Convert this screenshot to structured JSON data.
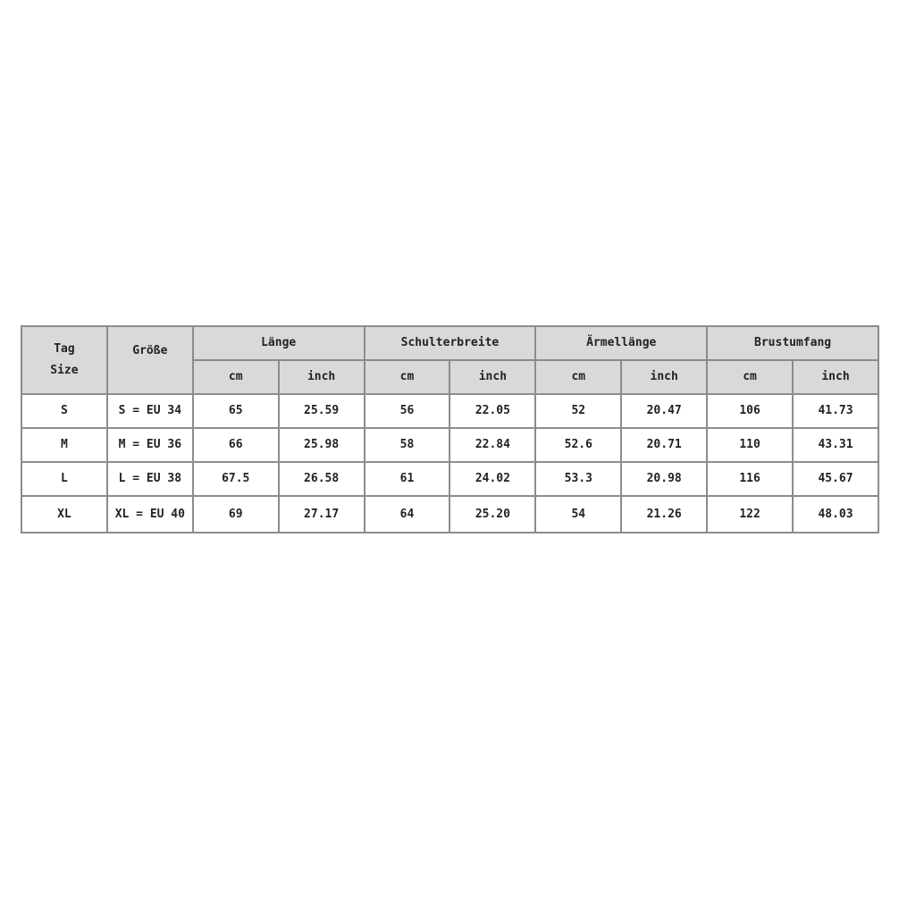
{
  "table": {
    "headers": {
      "tag_size": [
        "Tag",
        "Size"
      ],
      "groesse": "Größe",
      "groups": [
        "Länge",
        "Schulterbreite",
        "Ärmellänge",
        "Brustumfang"
      ],
      "units": [
        "cm",
        "inch"
      ]
    },
    "rows": [
      {
        "tag": "S",
        "size": "S = EU 34",
        "values": [
          "65",
          "25.59",
          "56",
          "22.05",
          "52",
          "20.47",
          "106",
          "41.73"
        ]
      },
      {
        "tag": "M",
        "size": "M = EU 36",
        "values": [
          "66",
          "25.98",
          "58",
          "22.84",
          "52.6",
          "20.71",
          "110",
          "43.31"
        ]
      },
      {
        "tag": "L",
        "size": "L = EU 38",
        "values": [
          "67.5",
          "26.58",
          "61",
          "24.02",
          "53.3",
          "20.98",
          "116",
          "45.67"
        ]
      },
      {
        "tag": "XL",
        "size": "XL = EU 40",
        "values": [
          "69",
          "27.17",
          "64",
          "25.20",
          "54",
          "21.26",
          "122",
          "48.03"
        ]
      }
    ],
    "colors": {
      "header_bg": "#d9d9d9",
      "border": "#8c8c8c"
    }
  }
}
